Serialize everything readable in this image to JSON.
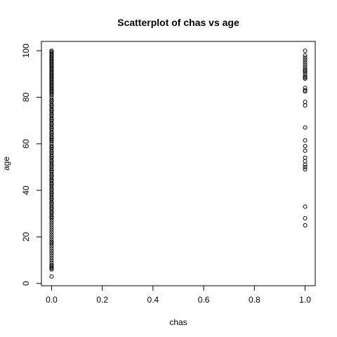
{
  "chart_data": {
    "type": "scatter",
    "title": "Scatterplot of chas vs age",
    "xlabel": "chas",
    "ylabel": "age",
    "xlim": [
      -0.04,
      1.04
    ],
    "ylim": [
      -1,
      104
    ],
    "x_ticks": [
      0,
      0.2,
      0.4,
      0.6,
      0.8,
      1.0
    ],
    "x_tick_labels": [
      "0.0",
      "0.2",
      "0.4",
      "0.6",
      "0.8",
      "1.0"
    ],
    "y_ticks": [
      0,
      20,
      40,
      60,
      80,
      100
    ],
    "y_tick_labels": [
      "0",
      "20",
      "40",
      "60",
      "80",
      "100"
    ],
    "grid": false,
    "marker": "open-circle",
    "point_color": "#000000",
    "series": [
      {
        "x": 0,
        "y": [
          100,
          99.5,
          99,
          98.5,
          98,
          97.5,
          97,
          96.5,
          96,
          95.5,
          95,
          94.5,
          94,
          93.5,
          93,
          92.5,
          92,
          91.5,
          91,
          90.5,
          90,
          89.5,
          89,
          88.5,
          88,
          87.5,
          87,
          86.5,
          86,
          85.5,
          85,
          84.5,
          84,
          83.5,
          83,
          82.5,
          82,
          81.5,
          81,
          80,
          79,
          78.5,
          78,
          77,
          76.5,
          76,
          75,
          74.5,
          74,
          73,
          72.5,
          72,
          71,
          70.5,
          70,
          69,
          68.5,
          68,
          67,
          66.5,
          66,
          65,
          64.5,
          64,
          63,
          62.5,
          62,
          61.5,
          61,
          60,
          59,
          58.5,
          58,
          57,
          56.5,
          56,
          55,
          54.5,
          54,
          53,
          52.5,
          52,
          51,
          50.5,
          50,
          49,
          48.5,
          48,
          47,
          46.5,
          46,
          45,
          44.5,
          44,
          43,
          42.5,
          42,
          41,
          40.5,
          40,
          39,
          38.5,
          38,
          37,
          36.5,
          36,
          35,
          34.5,
          34,
          33,
          32.5,
          32,
          31,
          30.5,
          30,
          29,
          28.5,
          28,
          27,
          26,
          25,
          24,
          23,
          22,
          21,
          20,
          19,
          18,
          17.5,
          17,
          16,
          15,
          14,
          13,
          12,
          11,
          10,
          9,
          8,
          7.5,
          7,
          6.5,
          6,
          3
        ]
      },
      {
        "x": 1,
        "y": [
          100,
          98,
          97,
          96,
          95,
          94,
          93,
          92,
          91.5,
          91,
          90,
          89,
          88.5,
          88,
          84,
          83,
          82.5,
          78,
          76.5,
          67,
          61.5,
          59,
          57,
          54,
          52.5,
          51,
          50,
          49,
          33,
          28,
          25
        ]
      }
    ]
  }
}
